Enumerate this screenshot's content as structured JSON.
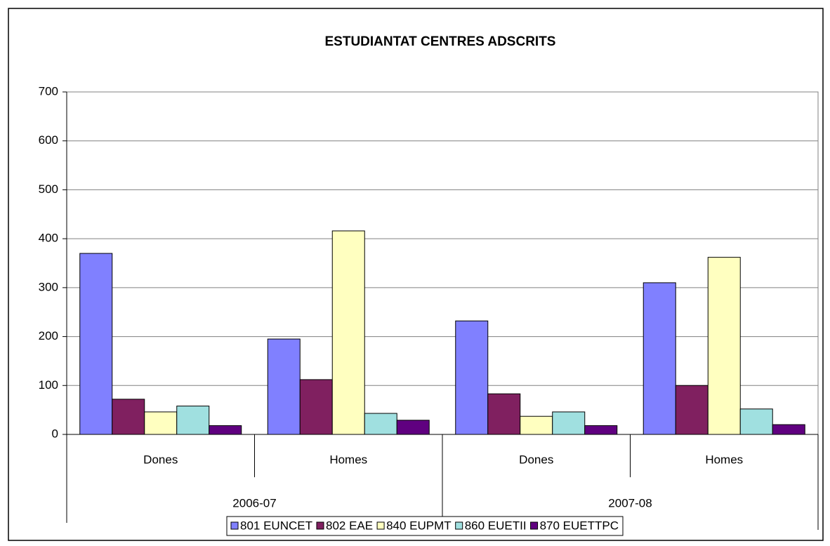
{
  "chart_data": {
    "type": "bar",
    "title": "ESTUDIANTAT CENTRES ADSCRITS",
    "categories": [
      "Dones",
      "Homes",
      "Dones",
      "Homes"
    ],
    "groups": [
      "2006-07",
      "2007-08"
    ],
    "series": [
      {
        "name": "801 EUNCET",
        "color": "#8080ff",
        "values": [
          370,
          195,
          232,
          310
        ]
      },
      {
        "name": "802 EAE",
        "color": "#802060",
        "values": [
          72,
          112,
          83,
          100
        ]
      },
      {
        "name": "840 EUPMT",
        "color": "#ffffc0",
        "values": [
          46,
          416,
          37,
          362
        ]
      },
      {
        "name": "860 EUETII",
        "color": "#a0e0e0",
        "values": [
          58,
          43,
          46,
          52
        ]
      },
      {
        "name": "870 EUETTPC",
        "color": "#600080",
        "values": [
          18,
          29,
          18,
          20
        ]
      }
    ],
    "ylim": [
      0,
      700
    ],
    "yticks": [
      0,
      100,
      200,
      300,
      400,
      500,
      600,
      700
    ],
    "grid": true
  }
}
